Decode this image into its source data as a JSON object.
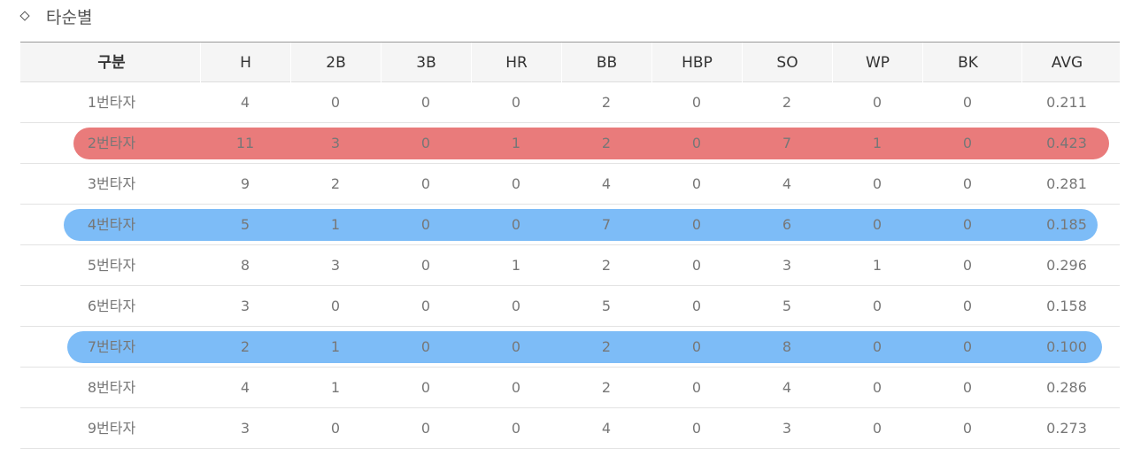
{
  "section": {
    "title": "타순별"
  },
  "table": {
    "headers": [
      "구분",
      "H",
      "2B",
      "3B",
      "HR",
      "BB",
      "HBP",
      "SO",
      "WP",
      "BK",
      "AVG"
    ],
    "rows": [
      [
        "1번타자",
        "4",
        "0",
        "0",
        "0",
        "2",
        "0",
        "2",
        "0",
        "0",
        "0.211"
      ],
      [
        "2번타자",
        "11",
        "3",
        "0",
        "1",
        "2",
        "0",
        "7",
        "1",
        "0",
        "0.423"
      ],
      [
        "3번타자",
        "9",
        "2",
        "0",
        "0",
        "4",
        "0",
        "4",
        "0",
        "0",
        "0.281"
      ],
      [
        "4번타자",
        "5",
        "1",
        "0",
        "0",
        "7",
        "0",
        "6",
        "0",
        "0",
        "0.185"
      ],
      [
        "5번타자",
        "8",
        "3",
        "0",
        "1",
        "2",
        "0",
        "3",
        "1",
        "0",
        "0.296"
      ],
      [
        "6번타자",
        "3",
        "0",
        "0",
        "0",
        "5",
        "0",
        "5",
        "0",
        "0",
        "0.158"
      ],
      [
        "7번타자",
        "2",
        "1",
        "0",
        "0",
        "2",
        "0",
        "8",
        "0",
        "0",
        "0.100"
      ],
      [
        "8번타자",
        "4",
        "1",
        "0",
        "0",
        "2",
        "0",
        "4",
        "0",
        "0",
        "0.286"
      ],
      [
        "9번타자",
        "3",
        "0",
        "0",
        "0",
        "4",
        "0",
        "3",
        "0",
        "0",
        "0.273"
      ]
    ]
  },
  "highlights": [
    {
      "row": 1,
      "color": "#e97b7b"
    },
    {
      "row": 3,
      "color": "#7dbcf7"
    },
    {
      "row": 6,
      "color": "#7dbcf7"
    }
  ]
}
